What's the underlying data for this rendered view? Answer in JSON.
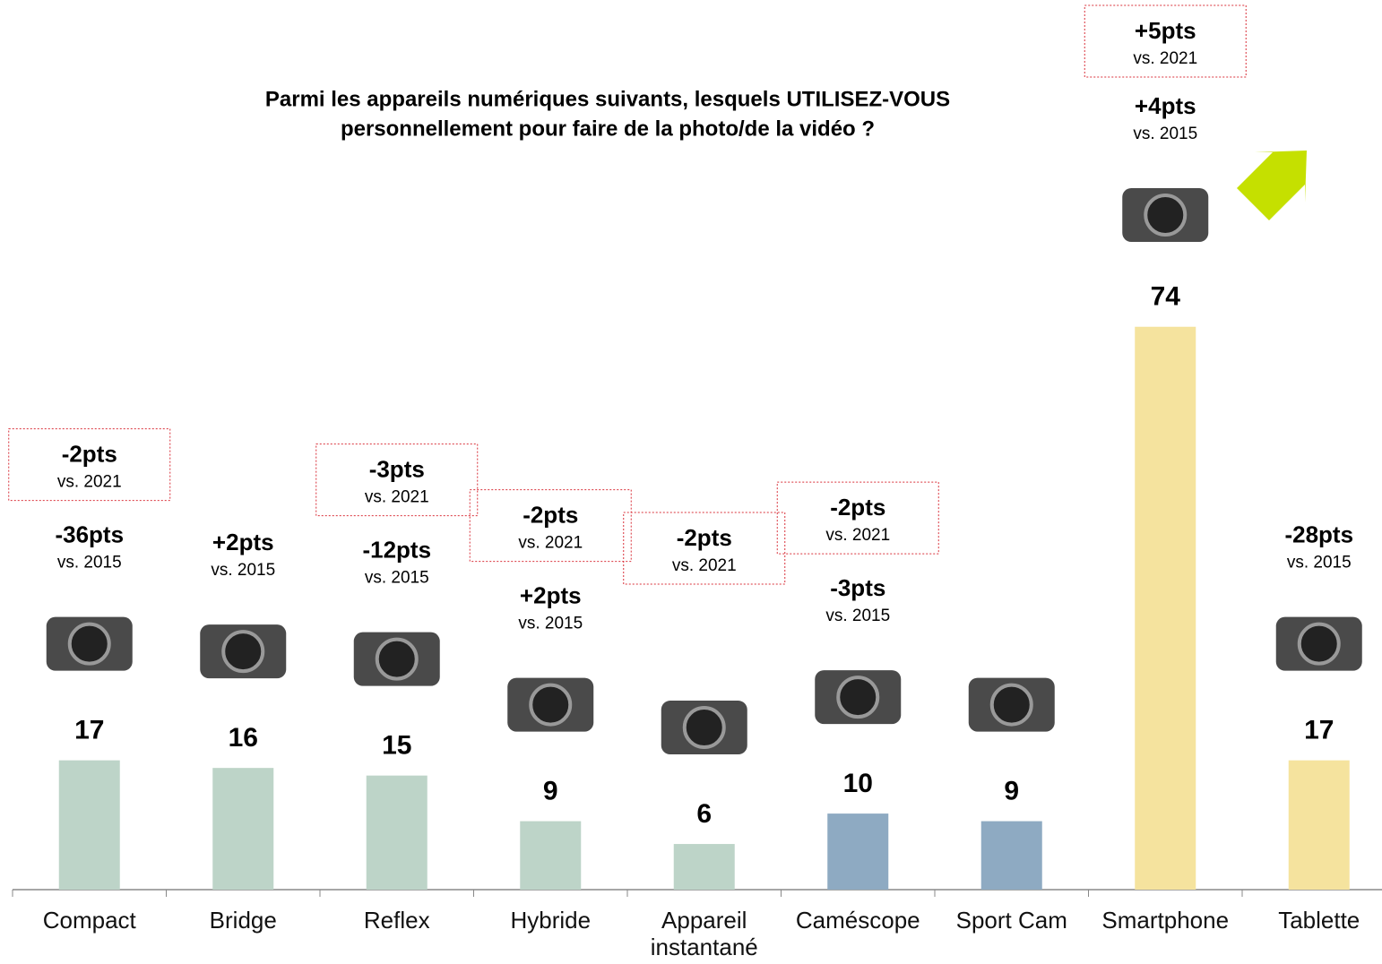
{
  "chart_data": {
    "type": "bar",
    "title": [
      "Parmi les appareils numériques suivants, lesquels UTILISEZ-VOUS",
      "personnellement pour faire de la photo/de la vidéo ?"
    ],
    "categories": [
      "Compact",
      "Bridge",
      "Reflex",
      "Hybride",
      "Appareil instantané",
      "Caméscope",
      "Sport Cam",
      "Smartphone",
      "Tablette"
    ],
    "values": [
      17,
      16,
      15,
      9,
      6,
      10,
      9,
      74,
      17
    ],
    "colors": [
      "#bdd4c8",
      "#bdd4c8",
      "#bdd4c8",
      "#bdd4c8",
      "#bdd4c8",
      "#8eaac2",
      "#8eaac2",
      "#f5e39e",
      "#f5e39e"
    ],
    "change_2015": [
      "-36pts",
      "+2pts",
      "-12pts",
      "+2pts",
      null,
      "-3pts",
      null,
      "+4pts",
      "-28pts"
    ],
    "change_2015_label": "vs. 2015",
    "change_2021": [
      "-2pts",
      null,
      "-3pts",
      "-2pts",
      "-2pts",
      "-2pts",
      null,
      "+5pts",
      null
    ],
    "change_2021_label": "vs. 2021"
  }
}
